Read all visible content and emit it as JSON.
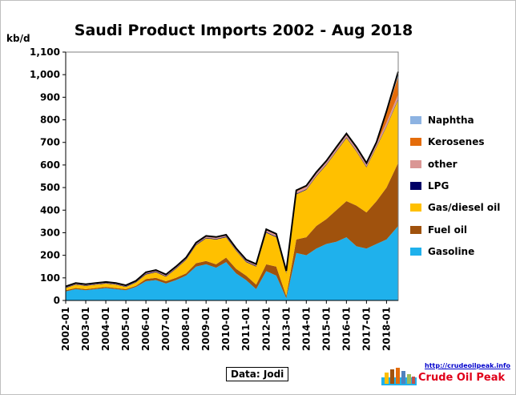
{
  "chart_data": {
    "type": "area",
    "stacked": true,
    "title": "Saudi Product Imports 2002 - Aug 2018",
    "ylabel": "kb/d",
    "ylim": [
      0,
      1100
    ],
    "yticks": [
      0,
      100,
      200,
      300,
      400,
      500,
      600,
      700,
      800,
      900,
      1000,
      1100
    ],
    "ytick_labels": [
      "0",
      "100",
      "200",
      "300",
      "400",
      "500",
      "600",
      "700",
      "800",
      "900",
      "1,000",
      "1,100"
    ],
    "xlim": [
      "2002-01",
      "2018-08"
    ],
    "xtick_labels": [
      "2002-01",
      "2003-01",
      "2004-01",
      "2005-01",
      "2006-01",
      "2007-01",
      "2008-01",
      "2009-01",
      "2010-01",
      "2011-01",
      "2012-01",
      "2013-01",
      "2014-01",
      "2015-01",
      "2016-01",
      "2017-01",
      "2018-01"
    ],
    "grid": false,
    "legend_position": "right",
    "x": [
      "2002-01",
      "2002-07",
      "2003-01",
      "2003-07",
      "2004-01",
      "2004-07",
      "2005-01",
      "2005-07",
      "2006-01",
      "2006-07",
      "2007-01",
      "2007-07",
      "2008-01",
      "2008-07",
      "2009-01",
      "2009-07",
      "2010-01",
      "2010-07",
      "2011-01",
      "2011-07",
      "2012-01",
      "2012-07",
      "2013-01",
      "2013-07",
      "2014-01",
      "2014-07",
      "2015-01",
      "2015-07",
      "2016-01",
      "2016-07",
      "2017-01",
      "2017-07",
      "2018-01",
      "2018-08"
    ],
    "series": [
      {
        "name": "Gasoline",
        "color": "#1fb1ec",
        "values": [
          40,
          50,
          45,
          50,
          55,
          50,
          45,
          60,
          85,
          90,
          75,
          90,
          110,
          150,
          160,
          145,
          170,
          120,
          90,
          50,
          130,
          110,
          10,
          210,
          200,
          230,
          250,
          260,
          280,
          240,
          230,
          250,
          270,
          330
        ]
      },
      {
        "name": "Fuel oil",
        "color": "#a0520d",
        "values": [
          5,
          5,
          5,
          5,
          5,
          5,
          5,
          5,
          10,
          10,
          10,
          10,
          10,
          15,
          15,
          15,
          20,
          20,
          20,
          20,
          30,
          40,
          10,
          60,
          80,
          100,
          110,
          140,
          160,
          180,
          160,
          190,
          230,
          280
        ]
      },
      {
        "name": "Gas/diesel oil",
        "color": "#ffc000",
        "values": [
          10,
          15,
          15,
          15,
          15,
          15,
          10,
          15,
          20,
          25,
          20,
          40,
          60,
          80,
          100,
          110,
          90,
          80,
          60,
          80,
          140,
          130,
          100,
          200,
          210,
          220,
          240,
          260,
          280,
          240,
          200,
          240,
          270,
          280
        ]
      },
      {
        "name": "LPG",
        "color": "#000066",
        "values": [
          2,
          2,
          2,
          2,
          2,
          2,
          2,
          2,
          3,
          3,
          3,
          3,
          3,
          3,
          3,
          3,
          3,
          3,
          3,
          3,
          3,
          3,
          3,
          3,
          3,
          3,
          3,
          3,
          3,
          3,
          3,
          3,
          3,
          3
        ]
      },
      {
        "name": "other",
        "color": "#da9694",
        "values": [
          3,
          3,
          3,
          3,
          3,
          3,
          3,
          3,
          5,
          5,
          5,
          5,
          5,
          5,
          5,
          5,
          5,
          5,
          5,
          5,
          8,
          8,
          5,
          10,
          10,
          10,
          10,
          10,
          10,
          10,
          10,
          10,
          15,
          20
        ]
      },
      {
        "name": "Kerosenes",
        "color": "#e46c0a",
        "values": [
          2,
          2,
          2,
          2,
          2,
          2,
          2,
          2,
          2,
          2,
          2,
          2,
          2,
          3,
          3,
          3,
          3,
          3,
          3,
          3,
          4,
          4,
          3,
          5,
          5,
          5,
          5,
          6,
          6,
          6,
          6,
          8,
          40,
          80
        ]
      },
      {
        "name": "Naphtha",
        "color": "#8db3e2",
        "values": [
          0,
          0,
          0,
          0,
          0,
          0,
          0,
          0,
          0,
          0,
          0,
          0,
          0,
          0,
          0,
          0,
          0,
          0,
          0,
          0,
          0,
          0,
          0,
          0,
          0,
          0,
          0,
          0,
          0,
          0,
          0,
          0,
          10,
          20
        ]
      }
    ],
    "total_line_color": "#000000",
    "source": "Data: Jodi"
  },
  "legend": [
    {
      "label": "Naphtha",
      "color": "#8db3e2"
    },
    {
      "label": "Kerosenes",
      "color": "#e46c0a"
    },
    {
      "label": "other",
      "color": "#da9694"
    },
    {
      "label": "LPG",
      "color": "#000066"
    },
    {
      "label": "Gas/diesel oil",
      "color": "#ffc000"
    },
    {
      "label": "Fuel oil",
      "color": "#a0520d"
    },
    {
      "label": "Gasoline",
      "color": "#1fb1ec"
    }
  ],
  "logo": {
    "url": "http://crudeoilpeak.info",
    "name": "Crude Oil Peak"
  }
}
